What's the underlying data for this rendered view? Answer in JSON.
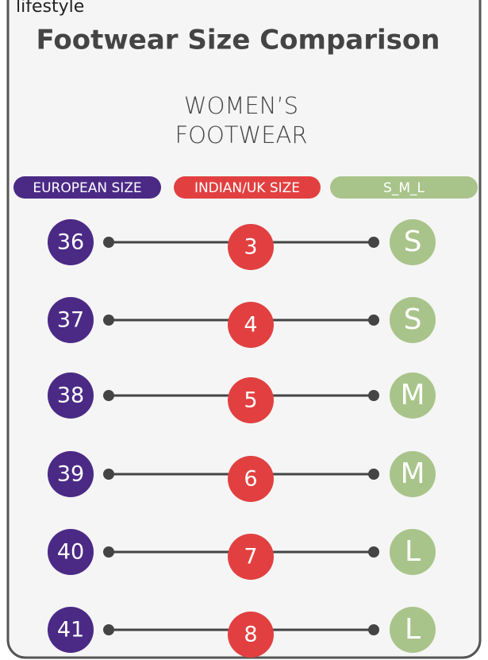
{
  "brand": "lifestyle",
  "title": "Footwear Size Comparison",
  "subtitle": [
    "WOMEN’S",
    "FOOTWEAR"
  ],
  "headers": [
    "EUROPEAN SIZE",
    "INDIAN/UK SIZE",
    "S_M_L"
  ],
  "rows": [
    [
      "36",
      "3",
      "S"
    ],
    [
      "37",
      "4",
      "S"
    ],
    [
      "38",
      "5",
      "M"
    ],
    [
      "39",
      "6",
      "M"
    ],
    [
      "40",
      "7",
      "L"
    ],
    [
      "41",
      "8",
      "L"
    ]
  ]
}
